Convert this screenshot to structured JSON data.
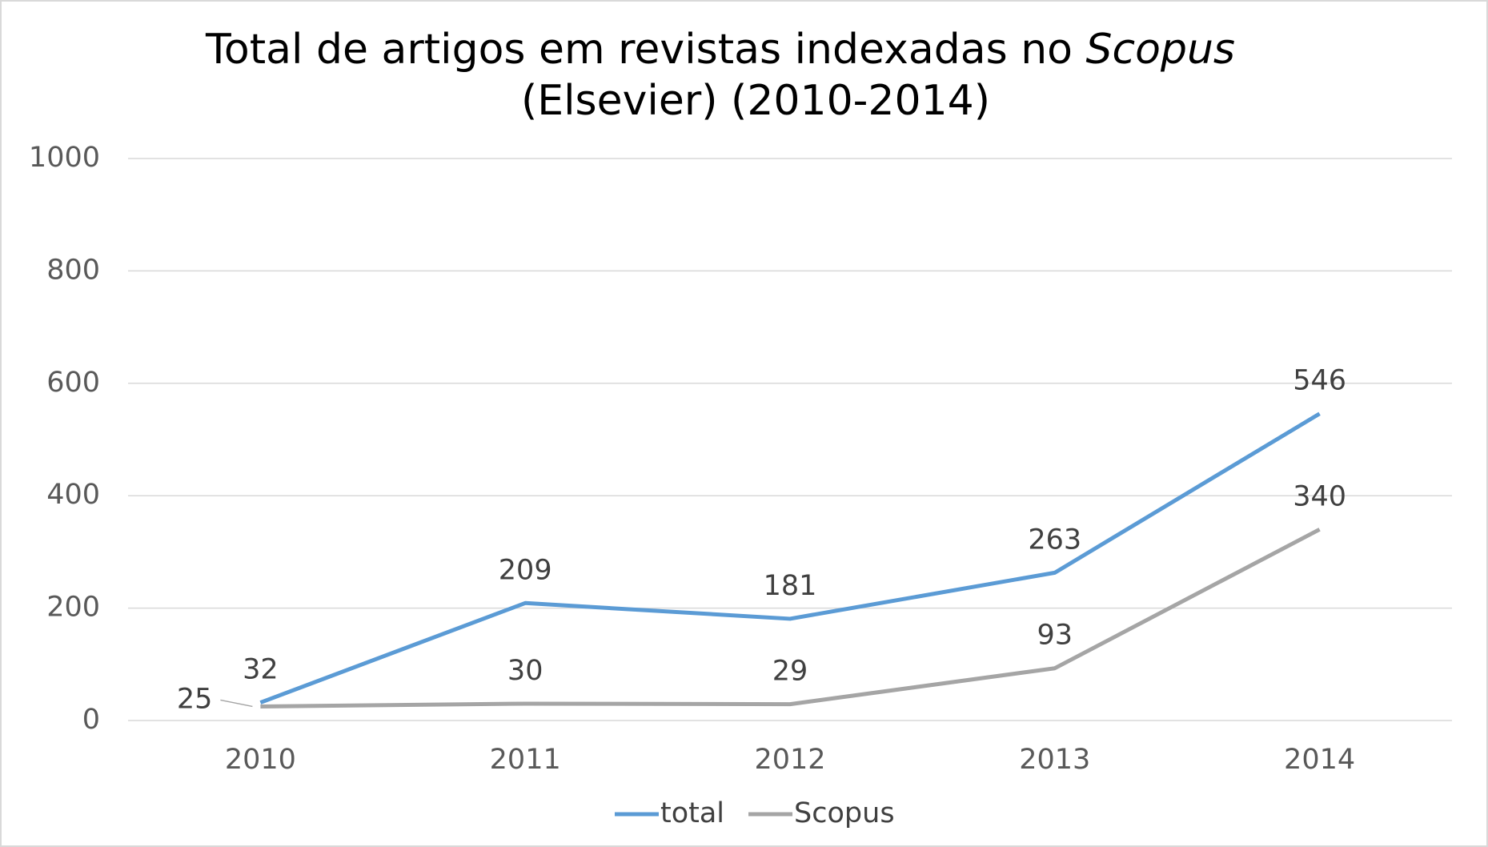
{
  "chart_data": {
    "type": "line",
    "title": [
      "Total de artigos em revistas indexadas no",
      "Scopus",
      "(Elsevier) (2010-2014)"
    ],
    "categories": [
      "2010",
      "2011",
      "2012",
      "2013",
      "2014"
    ],
    "series": [
      {
        "name": "total",
        "color": "#5b9bd5",
        "values": [
          32,
          209,
          181,
          263,
          546
        ]
      },
      {
        "name": "Scopus",
        "color": "#a5a5a5",
        "values": [
          25,
          30,
          29,
          93,
          340
        ]
      }
    ],
    "ylim": [
      0,
      1000
    ],
    "yticks": [
      0,
      200,
      400,
      600,
      800,
      1000
    ],
    "grid": true,
    "legend": "bottom"
  }
}
